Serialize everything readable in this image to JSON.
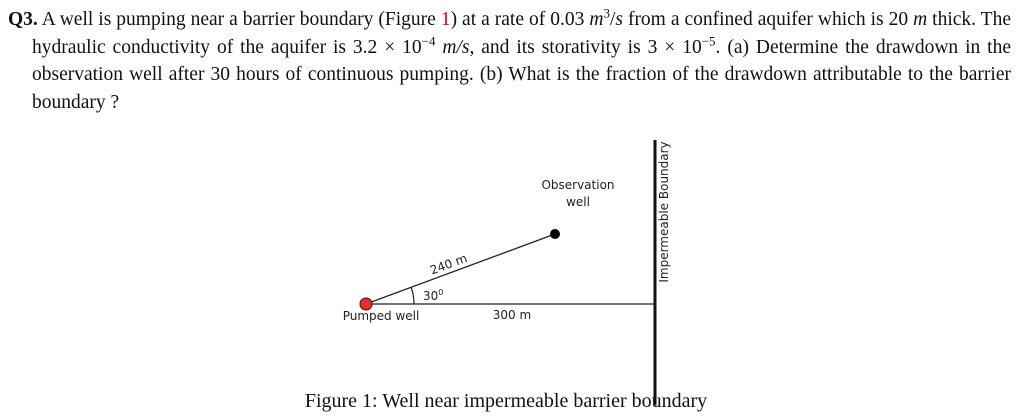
{
  "question": {
    "parts": [
      "Q3.",
      " A well is pumping near a barrier boundary (Figure ",
      "1",
      ") at a rate of 0.03 ",
      "m",
      "3",
      "/",
      "s",
      " from a confined aquifer which is 20 ",
      "m",
      " thick. The hydraulic conductivity of the aquifer is 3.2 × 10",
      "−4",
      " m/s",
      ", and its storativity is 3 × 10",
      "−5",
      ". (a) Determine the drawdown in the observation well after 30 hours of continuous pumping. (b) What is the fraction of the drawdown attributable to the barrier boundary ?"
    ]
  },
  "figure": {
    "observation_label": [
      "Observation",
      "well"
    ],
    "boundary_label": "Impermeable Boundary",
    "distance_to_observation": "240 m",
    "angle": {
      "number": "30",
      "degree": "0"
    },
    "pumped_well_label": "Pumped well",
    "distance_to_boundary": "300 m",
    "caption": "Figure 1: Well near impermeable barrier boundary"
  }
}
